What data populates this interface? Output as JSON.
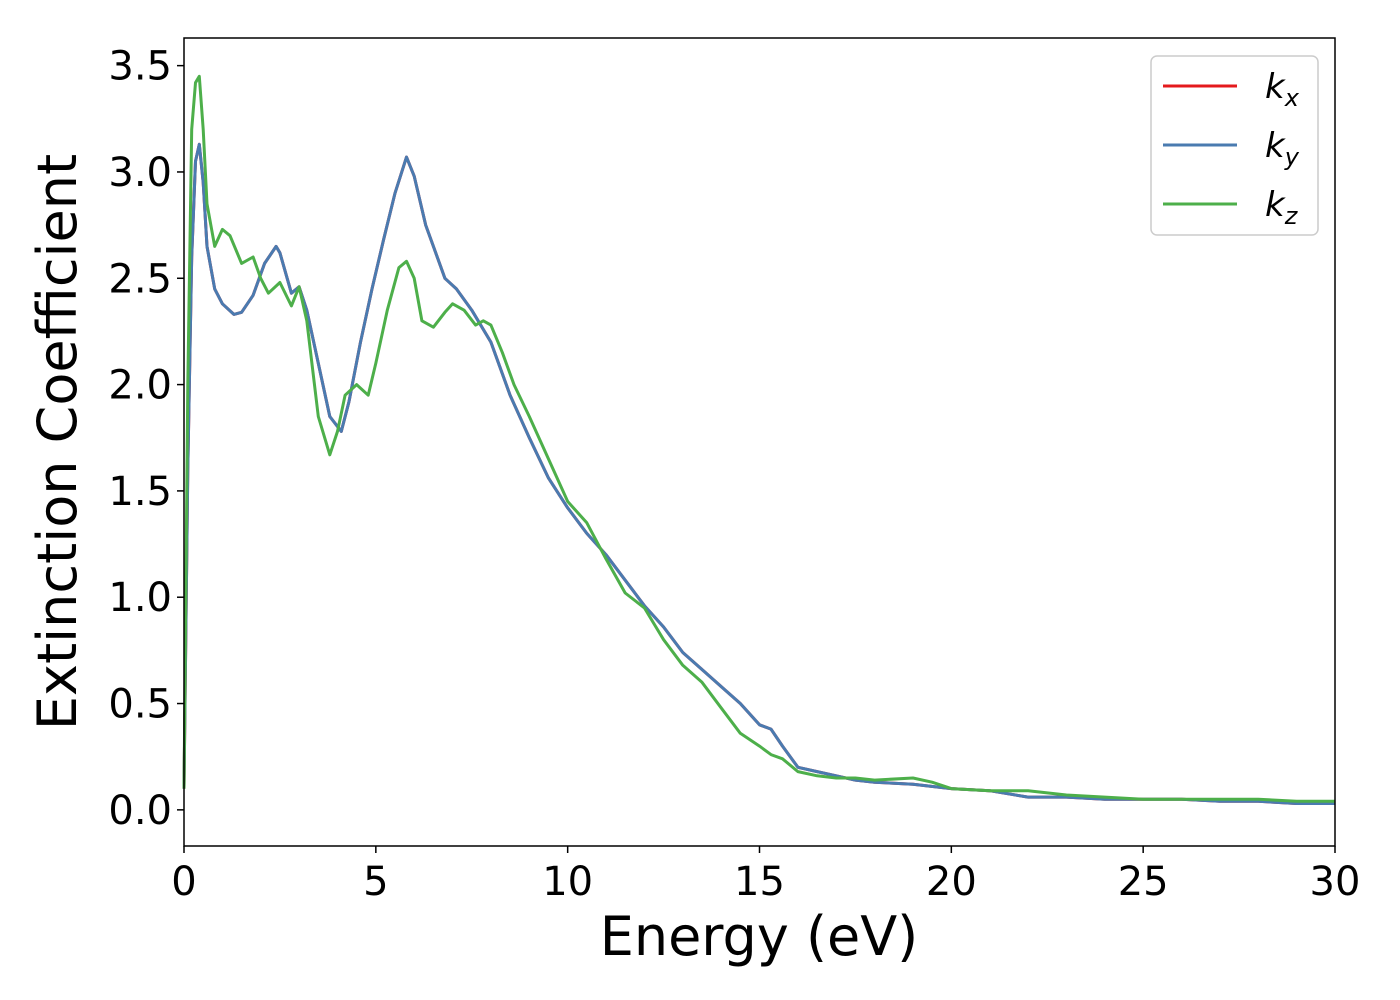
{
  "chart_data": {
    "type": "line",
    "title": "",
    "xlabel": "Energy (eV)",
    "ylabel": "Extinction Coefficient",
    "xlim": [
      0,
      30
    ],
    "ylim": [
      -0.17,
      3.63
    ],
    "xticks": [
      0,
      5,
      10,
      15,
      20,
      25,
      30
    ],
    "xtick_labels": [
      "0",
      "5",
      "10",
      "15",
      "20",
      "25",
      "30"
    ],
    "yticks": [
      0.0,
      0.5,
      1.0,
      1.5,
      2.0,
      2.5,
      3.0,
      3.5
    ],
    "ytick_labels": [
      "0.0",
      "0.5",
      "1.0",
      "1.5",
      "2.0",
      "2.5",
      "3.0",
      "3.5"
    ],
    "grid": false,
    "legend_position": "top-right",
    "series": [
      {
        "name": "k",
        "sub": "x",
        "color": "#e41a1c",
        "x": [
          0,
          0.1,
          0.2,
          0.3,
          0.4,
          0.5,
          0.6,
          0.8,
          1.0,
          1.3,
          1.5,
          1.8,
          2.1,
          2.4,
          2.5,
          2.8,
          3.0,
          3.2,
          3.5,
          3.8,
          4.1,
          4.3,
          4.6,
          4.9,
          5.2,
          5.5,
          5.8,
          6.0,
          6.3,
          6.5,
          6.8,
          7.1,
          7.5,
          8.0,
          8.5,
          9.0,
          9.5,
          10.0,
          10.5,
          11.0,
          11.5,
          12.0,
          12.5,
          13.0,
          13.5,
          14.0,
          14.5,
          15.0,
          15.3,
          15.6,
          16.0,
          16.5,
          17.0,
          17.5,
          18.0,
          19.0,
          20.0,
          21.0,
          22.0,
          23.0,
          24.0,
          25.0,
          26.0,
          27.0,
          28.0,
          29.0,
          30.0
        ],
        "y": [
          0.1,
          1.6,
          2.6,
          3.05,
          3.13,
          2.95,
          2.65,
          2.45,
          2.38,
          2.33,
          2.34,
          2.42,
          2.57,
          2.65,
          2.62,
          2.43,
          2.46,
          2.35,
          2.1,
          1.85,
          1.78,
          1.92,
          2.2,
          2.45,
          2.68,
          2.9,
          3.07,
          2.98,
          2.75,
          2.65,
          2.5,
          2.45,
          2.35,
          2.2,
          1.95,
          1.75,
          1.56,
          1.42,
          1.3,
          1.2,
          1.08,
          0.96,
          0.86,
          0.74,
          0.66,
          0.58,
          0.5,
          0.4,
          0.38,
          0.3,
          0.2,
          0.18,
          0.16,
          0.14,
          0.13,
          0.12,
          0.1,
          0.09,
          0.06,
          0.06,
          0.05,
          0.05,
          0.05,
          0.04,
          0.04,
          0.03,
          0.03
        ]
      },
      {
        "name": "k",
        "sub": "y",
        "color": "#4a7bb0",
        "x": [
          0,
          0.1,
          0.2,
          0.3,
          0.4,
          0.5,
          0.6,
          0.8,
          1.0,
          1.3,
          1.5,
          1.8,
          2.1,
          2.4,
          2.5,
          2.8,
          3.0,
          3.2,
          3.5,
          3.8,
          4.1,
          4.3,
          4.6,
          4.9,
          5.2,
          5.5,
          5.8,
          6.0,
          6.3,
          6.5,
          6.8,
          7.1,
          7.5,
          8.0,
          8.5,
          9.0,
          9.5,
          10.0,
          10.5,
          11.0,
          11.5,
          12.0,
          12.5,
          13.0,
          13.5,
          14.0,
          14.5,
          15.0,
          15.3,
          15.6,
          16.0,
          16.5,
          17.0,
          17.5,
          18.0,
          19.0,
          20.0,
          21.0,
          22.0,
          23.0,
          24.0,
          25.0,
          26.0,
          27.0,
          28.0,
          29.0,
          30.0
        ],
        "y": [
          0.1,
          1.6,
          2.6,
          3.05,
          3.13,
          2.95,
          2.65,
          2.45,
          2.38,
          2.33,
          2.34,
          2.42,
          2.57,
          2.65,
          2.62,
          2.43,
          2.46,
          2.35,
          2.1,
          1.85,
          1.78,
          1.92,
          2.2,
          2.45,
          2.68,
          2.9,
          3.07,
          2.98,
          2.75,
          2.65,
          2.5,
          2.45,
          2.35,
          2.2,
          1.95,
          1.75,
          1.56,
          1.42,
          1.3,
          1.2,
          1.08,
          0.96,
          0.86,
          0.74,
          0.66,
          0.58,
          0.5,
          0.4,
          0.38,
          0.3,
          0.2,
          0.18,
          0.16,
          0.14,
          0.13,
          0.12,
          0.1,
          0.09,
          0.06,
          0.06,
          0.05,
          0.05,
          0.05,
          0.04,
          0.04,
          0.03,
          0.03
        ]
      },
      {
        "name": "k",
        "sub": "z",
        "color": "#4daf4a",
        "x": [
          0,
          0.1,
          0.2,
          0.3,
          0.4,
          0.5,
          0.6,
          0.8,
          1.0,
          1.2,
          1.5,
          1.8,
          2.0,
          2.2,
          2.5,
          2.8,
          3.0,
          3.2,
          3.5,
          3.8,
          4.0,
          4.2,
          4.5,
          4.8,
          5.0,
          5.3,
          5.6,
          5.8,
          6.0,
          6.2,
          6.5,
          6.8,
          7.0,
          7.3,
          7.6,
          7.8,
          8.0,
          8.3,
          8.6,
          9.0,
          9.5,
          10.0,
          10.5,
          11.0,
          11.5,
          12.0,
          12.5,
          13.0,
          13.5,
          14.0,
          14.5,
          15.0,
          15.3,
          15.6,
          16.0,
          16.5,
          17.0,
          17.5,
          18.0,
          19.0,
          19.5,
          20.0,
          21.0,
          22.0,
          23.0,
          24.0,
          25.0,
          26.0,
          27.0,
          28.0,
          29.0,
          30.0
        ],
        "y": [
          0.1,
          2.0,
          3.2,
          3.42,
          3.45,
          3.2,
          2.85,
          2.65,
          2.73,
          2.7,
          2.57,
          2.6,
          2.5,
          2.43,
          2.48,
          2.37,
          2.46,
          2.3,
          1.85,
          1.67,
          1.78,
          1.95,
          2.0,
          1.95,
          2.1,
          2.35,
          2.55,
          2.58,
          2.5,
          2.3,
          2.27,
          2.34,
          2.38,
          2.35,
          2.28,
          2.3,
          2.28,
          2.15,
          2.0,
          1.85,
          1.65,
          1.45,
          1.35,
          1.18,
          1.02,
          0.95,
          0.8,
          0.68,
          0.6,
          0.48,
          0.36,
          0.3,
          0.26,
          0.24,
          0.18,
          0.16,
          0.15,
          0.15,
          0.14,
          0.15,
          0.13,
          0.1,
          0.09,
          0.09,
          0.07,
          0.06,
          0.05,
          0.05,
          0.05,
          0.05,
          0.04,
          0.04
        ]
      }
    ]
  }
}
